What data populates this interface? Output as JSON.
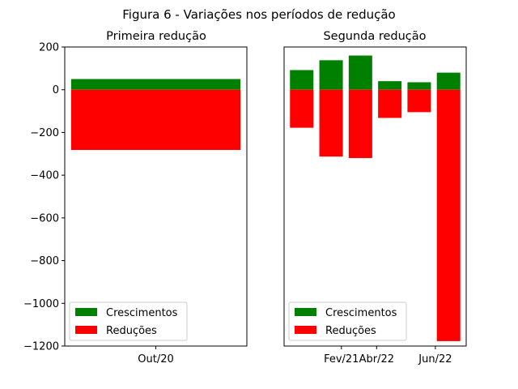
{
  "figure_title": "Figura 6 - Variações nos períodos de redução",
  "colors": {
    "growth": "#008000",
    "reduction": "#ff0000",
    "axis": "#000000"
  },
  "chart_data": [
    {
      "type": "bar",
      "title": "Primeira redução",
      "stacked": true,
      "ylim": [
        -1200,
        200
      ],
      "yticks": [
        200,
        0,
        -200,
        -400,
        -600,
        -800,
        -1000,
        -1200
      ],
      "ytick_labels": [
        "200",
        "0",
        "−200",
        "−400",
        "−600",
        "−800",
        "−1000",
        "−1200"
      ],
      "xticks": [
        {
          "x": 0,
          "label": "Out/20"
        }
      ],
      "xlim": [
        -0.5,
        0.5
      ],
      "bar_width": 0.93,
      "series": [
        {
          "name": "Crescimentos",
          "color": "#008000",
          "points": [
            {
              "x": 0,
              "value": 50
            }
          ]
        },
        {
          "name": "Reduções",
          "color": "#ff0000",
          "points": [
            {
              "x": 0,
              "value": -282
            }
          ]
        }
      ],
      "legend": {
        "position": "lower left",
        "entries": [
          "Crescimentos",
          "Reduções"
        ]
      }
    },
    {
      "type": "bar",
      "title": "Segunda redução",
      "stacked": true,
      "ylim": [
        -1200,
        200
      ],
      "xlim": [
        -0.6,
        5.6
      ],
      "bar_width": 0.8,
      "xticks": [
        {
          "x": 1.35,
          "label": "Fev/21"
        },
        {
          "x": 2.55,
          "label": "Abr/22"
        },
        {
          "x": 4.55,
          "label": "Jun/22"
        }
      ],
      "series": [
        {
          "name": "Crescimentos",
          "color": "#008000",
          "points": [
            {
              "x": 0,
              "value": 92
            },
            {
              "x": 1,
              "value": 138
            },
            {
              "x": 2,
              "value": 160
            },
            {
              "x": 3,
              "value": 40
            },
            {
              "x": 4,
              "value": 35
            },
            {
              "x": 5,
              "value": 80
            }
          ]
        },
        {
          "name": "Reduções",
          "color": "#ff0000",
          "points": [
            {
              "x": 0,
              "value": -178
            },
            {
              "x": 1,
              "value": -313
            },
            {
              "x": 2,
              "value": -320
            },
            {
              "x": 3,
              "value": -132
            },
            {
              "x": 4,
              "value": -105
            },
            {
              "x": 5,
              "value": -1177
            }
          ]
        }
      ],
      "legend": {
        "position": "lower left",
        "entries": [
          "Crescimentos",
          "Reduções"
        ]
      }
    }
  ]
}
